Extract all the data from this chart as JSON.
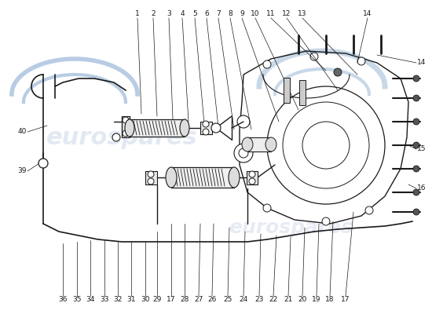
{
  "bg_color": "#ffffff",
  "line_color": "#1a1a1a",
  "watermark_color": "#c8d4e8",
  "top_nums": [
    "1",
    "2",
    "3",
    "4",
    "5",
    "6",
    "7",
    "8",
    "9",
    "10",
    "11",
    "12",
    "13",
    "14"
  ],
  "bottom_nums": [
    "36",
    "35",
    "34",
    "33",
    "32",
    "31",
    "30",
    "29",
    "17",
    "28",
    "27",
    "26",
    "25",
    "24",
    "23",
    "22",
    "21",
    "20",
    "19",
    "18",
    "17"
  ],
  "left_nums": [
    "40",
    "39"
  ],
  "right_nums": [
    "14",
    "15",
    "16"
  ]
}
